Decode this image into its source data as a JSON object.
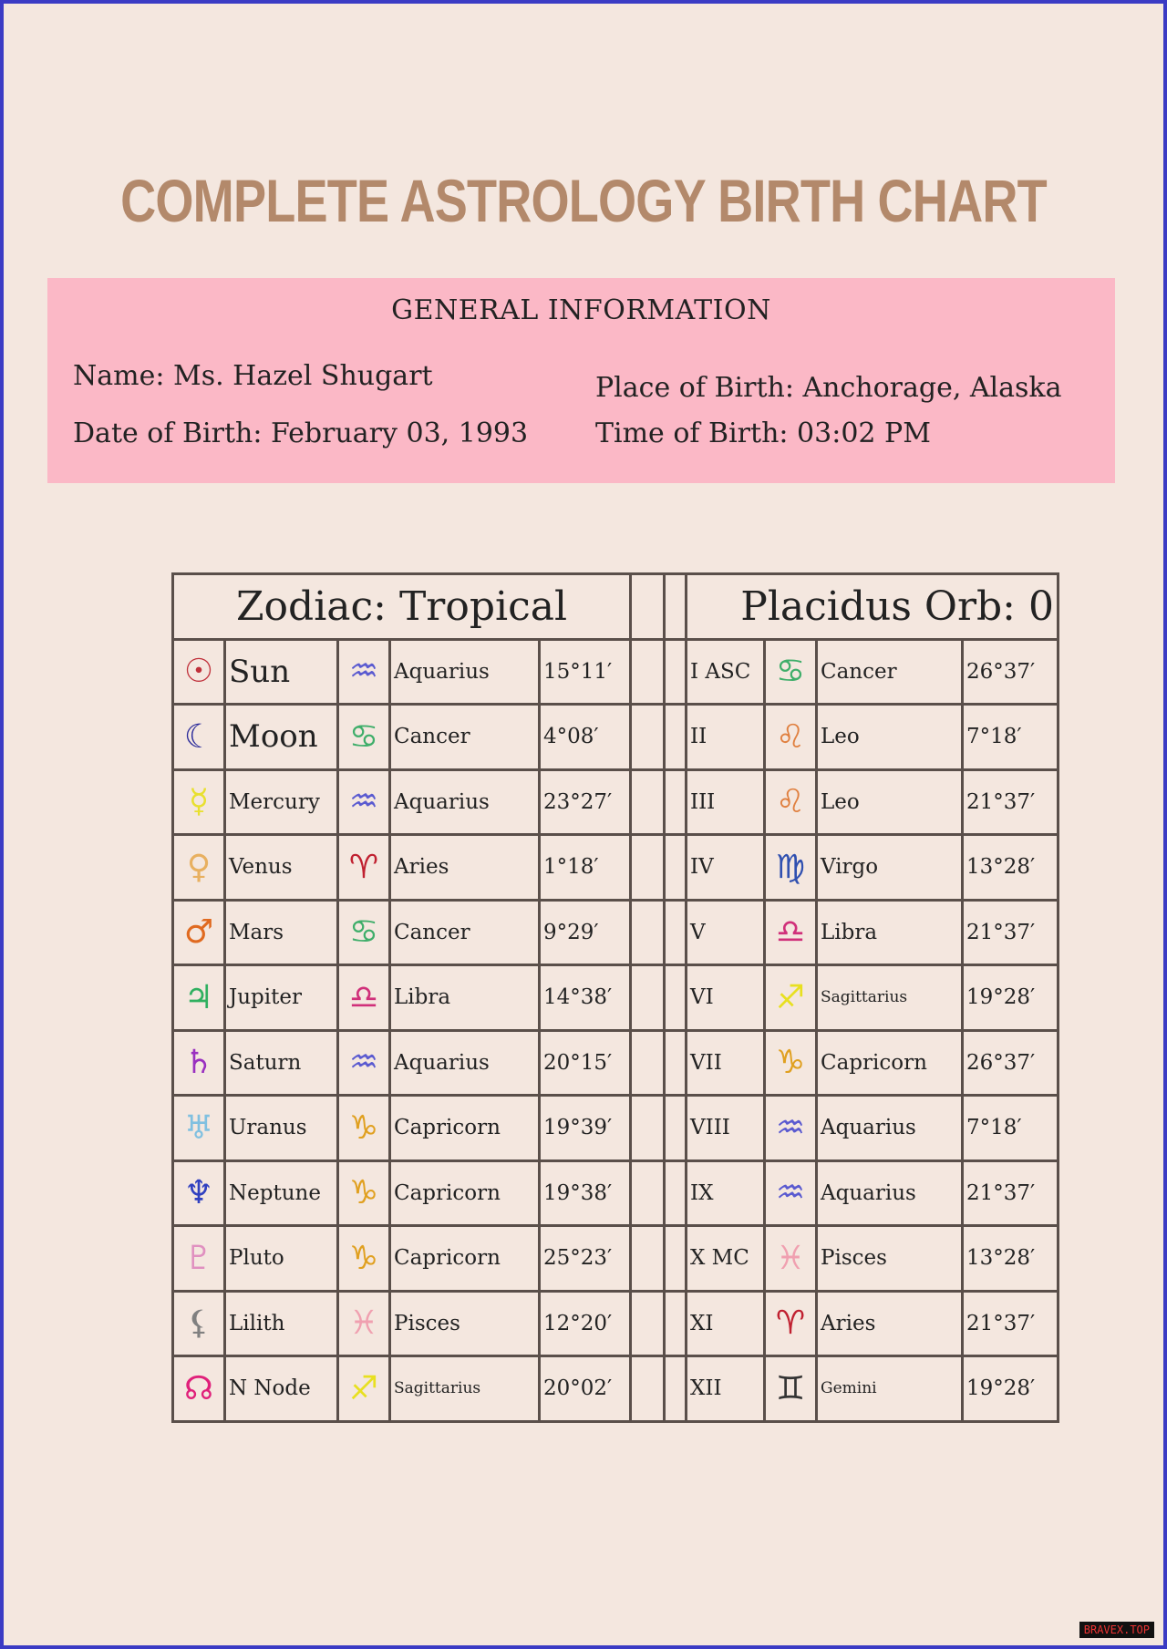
{
  "title": "COMPLETE ASTROLOGY BIRTH CHART",
  "general": {
    "heading": "GENERAL INFORMATION",
    "name": "Name: Ms. Hazel Shugart",
    "dob": "Date of Birth: February 03, 1993",
    "pob": "Place of Birth: Anchorage, Alaska",
    "tob": "Time of Birth: 03:02 PM"
  },
  "table": {
    "left_header": "Zodiac: Tropical",
    "right_header": "Placidus Orb: 0",
    "planets": [
      {
        "glyph": "☉",
        "color": "#c0303a",
        "name": "Sun",
        "sign_glyph": "♒",
        "sign_color": "#5a5ad0",
        "sign": "Aquarius",
        "deg": "15°11′"
      },
      {
        "glyph": "☾",
        "color": "#2a2a9a",
        "name": "Moon",
        "sign_glyph": "♋",
        "sign_color": "#3fae6a",
        "sign": "Cancer",
        "deg": "4°08′"
      },
      {
        "glyph": "☿",
        "color": "#e8e030",
        "name": "Mercury",
        "sign_glyph": "♒",
        "sign_color": "#5a5ad0",
        "sign": "Aquarius",
        "deg": "23°27′"
      },
      {
        "glyph": "♀",
        "color": "#e8b060",
        "name": "Venus",
        "sign_glyph": "♈",
        "sign_color": "#c02030",
        "sign": "Aries",
        "deg": "1°18′"
      },
      {
        "glyph": "♂",
        "color": "#e06a20",
        "name": "Mars",
        "sign_glyph": "♋",
        "sign_color": "#3fae6a",
        "sign": "Cancer",
        "deg": "9°29′"
      },
      {
        "glyph": "♃",
        "color": "#30b060",
        "name": "Jupiter",
        "sign_glyph": "♎",
        "sign_color": "#d0307a",
        "sign": "Libra",
        "deg": "14°38′"
      },
      {
        "glyph": "♄",
        "color": "#9a30c0",
        "name": "Saturn",
        "sign_glyph": "♒",
        "sign_color": "#5a5ad0",
        "sign": "Aquarius",
        "deg": "20°15′"
      },
      {
        "glyph": "♅",
        "color": "#80c0e0",
        "name": "Uranus",
        "sign_glyph": "♑",
        "sign_color": "#e0a020",
        "sign": "Capricorn",
        "deg": "19°39′"
      },
      {
        "glyph": "♆",
        "color": "#3040c0",
        "name": "Neptune",
        "sign_glyph": "♑",
        "sign_color": "#e0a020",
        "sign": "Capricorn",
        "deg": "19°38′"
      },
      {
        "glyph": "♇",
        "color": "#e090c0",
        "name": "Pluto",
        "sign_glyph": "♑",
        "sign_color": "#e0a020",
        "sign": "Capricorn",
        "deg": "25°23′"
      },
      {
        "glyph": "⚸",
        "color": "#808080",
        "name": "Lilith",
        "sign_glyph": "♓",
        "sign_color": "#f0a0b0",
        "sign": "Pisces",
        "deg": "12°20′"
      },
      {
        "glyph": "☊",
        "color": "#e0207a",
        "name": "N Node",
        "sign_glyph": "♐",
        "sign_color": "#e8e020",
        "sign": "Sagittarius",
        "deg": "20°02′"
      }
    ],
    "houses": [
      {
        "house": "I ASC",
        "sign_glyph": "♋",
        "sign_color": "#3fae6a",
        "sign": "Cancer",
        "deg": "26°37′"
      },
      {
        "house": "II",
        "sign_glyph": "♌",
        "sign_color": "#e08040",
        "sign": "Leo",
        "deg": "7°18′"
      },
      {
        "house": "III",
        "sign_glyph": "♌",
        "sign_color": "#e08040",
        "sign": "Leo",
        "deg": "21°37′"
      },
      {
        "house": "IV",
        "sign_glyph": "♍",
        "sign_color": "#3050b0",
        "sign": "Virgo",
        "deg": "13°28′"
      },
      {
        "house": "V",
        "sign_glyph": "♎",
        "sign_color": "#d0307a",
        "sign": "Libra",
        "deg": "21°37′"
      },
      {
        "house": "VI",
        "sign_glyph": "♐",
        "sign_color": "#e8e020",
        "sign": "Sagittarius",
        "deg": "19°28′"
      },
      {
        "house": "VII",
        "sign_glyph": "♑",
        "sign_color": "#e0a020",
        "sign": "Capricorn",
        "deg": "26°37′"
      },
      {
        "house": "VIII",
        "sign_glyph": "♒",
        "sign_color": "#5a5ad0",
        "sign": "Aquarius",
        "deg": "7°18′"
      },
      {
        "house": "IX",
        "sign_glyph": "♒",
        "sign_color": "#5a5ad0",
        "sign": "Aquarius",
        "deg": "21°37′"
      },
      {
        "house": "X MC",
        "sign_glyph": "♓",
        "sign_color": "#f0a0b0",
        "sign": "Pisces",
        "deg": "13°28′"
      },
      {
        "house": "XI",
        "sign_glyph": "♈",
        "sign_color": "#c02030",
        "sign": "Aries",
        "deg": "21°37′"
      },
      {
        "house": "XII",
        "sign_glyph": "♊",
        "sign_color": "#333333",
        "sign": "Gemini",
        "deg": "19°28′"
      }
    ]
  },
  "watermark": "BRAVEX.TOP"
}
